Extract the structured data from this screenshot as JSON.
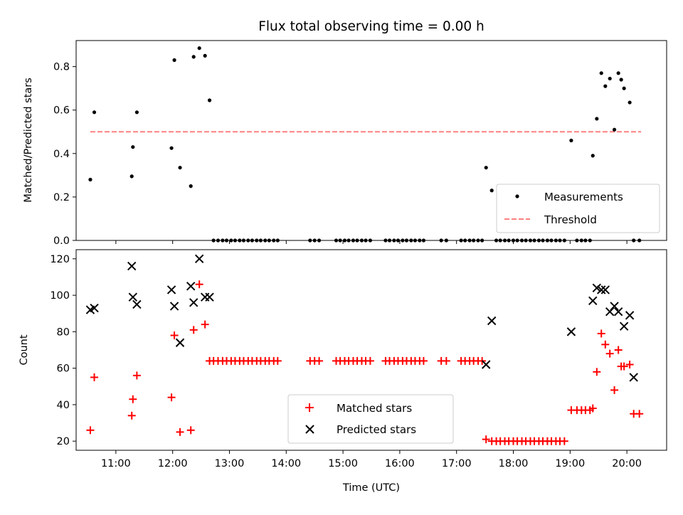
{
  "chart_data": [
    {
      "type": "scatter",
      "title": "Flux total observing time = 0.00 h",
      "ylabel": "Matched/Predicted stars",
      "xlim": [
        10.3,
        20.7
      ],
      "ylim": [
        0,
        0.92
      ],
      "yticks": [
        0.0,
        0.2,
        0.4,
        0.6,
        0.8
      ],
      "ytick_labels": [
        "0.0",
        "0.2",
        "0.4",
        "0.6",
        "0.8"
      ],
      "legend_loc": "lower-right",
      "legend": [
        "Measurements",
        "Threshold"
      ],
      "threshold": {
        "name": "Threshold",
        "y": 0.5,
        "x": [
          10.55,
          20.25
        ],
        "color": "#ff8080",
        "style": "dashed"
      },
      "series": [
        {
          "name": "Measurements",
          "marker": "dot",
          "color": "#000000",
          "x": [
            10.55,
            10.62,
            11.28,
            11.3,
            11.37,
            11.98,
            12.03,
            12.13,
            12.32,
            12.37,
            12.47,
            12.57,
            12.65,
            12.72,
            12.8,
            12.88,
            12.95,
            13.03,
            13.1,
            13.18,
            13.25,
            13.33,
            13.4,
            13.48,
            13.55,
            13.63,
            13.7,
            13.78,
            13.85,
            14.42,
            14.5,
            14.58,
            14.88,
            14.95,
            15.03,
            15.1,
            15.18,
            15.25,
            15.33,
            15.4,
            15.48,
            15.75,
            15.82,
            15.9,
            15.97,
            16.05,
            16.12,
            16.2,
            16.27,
            16.35,
            16.42,
            16.73,
            16.82,
            17.08,
            17.15,
            17.23,
            17.3,
            17.38,
            17.45,
            17.52,
            17.62,
            17.7,
            17.77,
            17.85,
            17.92,
            18.0,
            18.07,
            18.15,
            18.22,
            18.3,
            18.37,
            18.45,
            18.52,
            18.6,
            18.67,
            18.75,
            18.82,
            18.9,
            19.02,
            19.12,
            19.2,
            19.27,
            19.35,
            19.4,
            19.47,
            19.55,
            19.62,
            19.7,
            19.78,
            19.85,
            19.9,
            19.95,
            20.05,
            20.12,
            20.22
          ],
          "y": [
            0.28,
            0.59,
            0.295,
            0.43,
            0.59,
            0.425,
            0.83,
            0.335,
            0.25,
            0.845,
            0.885,
            0.85,
            0.645,
            0,
            0,
            0,
            0,
            0,
            0,
            0,
            0,
            0,
            0,
            0,
            0,
            0,
            0,
            0,
            0,
            0,
            0,
            0,
            0,
            0,
            0,
            0,
            0,
            0,
            0,
            0,
            0,
            0,
            0,
            0,
            0,
            0,
            0,
            0,
            0,
            0,
            0,
            0,
            0,
            0,
            0,
            0,
            0,
            0,
            0,
            0.335,
            0.23,
            0,
            0,
            0,
            0,
            0,
            0,
            0,
            0,
            0,
            0,
            0,
            0,
            0,
            0,
            0,
            0,
            0,
            0.46,
            0,
            0,
            0,
            0,
            0.39,
            0.56,
            0.77,
            0.71,
            0.745,
            0.51,
            0.77,
            0.74,
            0.7,
            0.635,
            0,
            0
          ]
        }
      ]
    },
    {
      "type": "scatter",
      "xlabel": "Time (UTC)",
      "ylabel": "Count",
      "xlim": [
        10.3,
        20.7
      ],
      "ylim": [
        15,
        125
      ],
      "yticks": [
        20,
        40,
        60,
        80,
        100,
        120
      ],
      "ytick_labels": [
        "20",
        "40",
        "60",
        "80",
        "100",
        "120"
      ],
      "xticks": [
        11,
        12,
        13,
        14,
        15,
        16,
        17,
        18,
        19,
        20
      ],
      "xtick_labels": [
        "11:00",
        "12:00",
        "13:00",
        "14:00",
        "15:00",
        "16:00",
        "17:00",
        "18:00",
        "19:00",
        "20:00"
      ],
      "legend_loc": "lower-center",
      "legend": [
        "Matched stars",
        "Predicted stars"
      ],
      "series": [
        {
          "name": "Matched stars",
          "marker": "plus",
          "color": "#ff0000",
          "x": [
            10.55,
            10.62,
            11.28,
            11.3,
            11.37,
            11.98,
            12.03,
            12.13,
            12.32,
            12.37,
            12.47,
            12.57,
            12.65,
            12.72,
            12.8,
            12.88,
            12.95,
            13.03,
            13.1,
            13.18,
            13.25,
            13.33,
            13.4,
            13.48,
            13.55,
            13.63,
            13.7,
            13.78,
            13.85,
            14.42,
            14.5,
            14.58,
            14.88,
            14.95,
            15.03,
            15.1,
            15.18,
            15.25,
            15.33,
            15.4,
            15.48,
            15.75,
            15.82,
            15.9,
            15.97,
            16.05,
            16.12,
            16.2,
            16.27,
            16.35,
            16.42,
            16.73,
            16.82,
            17.08,
            17.15,
            17.23,
            17.3,
            17.38,
            17.45,
            17.52,
            17.62,
            17.7,
            17.77,
            17.85,
            17.92,
            18.0,
            18.07,
            18.15,
            18.22,
            18.3,
            18.37,
            18.45,
            18.52,
            18.6,
            18.67,
            18.75,
            18.82,
            18.9,
            19.02,
            19.12,
            19.2,
            19.27,
            19.35,
            19.4,
            19.47,
            19.55,
            19.62,
            19.7,
            19.78,
            19.85,
            19.9,
            19.95,
            20.05,
            20.12,
            20.22
          ],
          "y": [
            26,
            55,
            34,
            43,
            56,
            44,
            78,
            25,
            26,
            81,
            106,
            84,
            64,
            64,
            64,
            64,
            64,
            64,
            64,
            64,
            64,
            64,
            64,
            64,
            64,
            64,
            64,
            64,
            64,
            64,
            64,
            64,
            64,
            64,
            64,
            64,
            64,
            64,
            64,
            64,
            64,
            64,
            64,
            64,
            64,
            64,
            64,
            64,
            64,
            64,
            64,
            64,
            64,
            64,
            64,
            64,
            64,
            64,
            64,
            21,
            20,
            20,
            20,
            20,
            20,
            20,
            20,
            20,
            20,
            20,
            20,
            20,
            20,
            20,
            20,
            20,
            20,
            20,
            37,
            37,
            37,
            37,
            37,
            38,
            58,
            79,
            73,
            68,
            48,
            70,
            61,
            61,
            62,
            35,
            35
          ]
        },
        {
          "name": "Predicted stars",
          "marker": "x",
          "color": "#000000",
          "x": [
            10.55,
            10.62,
            11.28,
            11.3,
            11.37,
            11.98,
            12.03,
            12.13,
            12.32,
            12.37,
            12.47,
            12.57,
            12.65,
            17.52,
            17.62,
            19.02,
            19.4,
            19.47,
            19.55,
            19.62,
            19.7,
            19.78,
            19.85,
            19.95,
            20.05,
            20.12
          ],
          "y": [
            92,
            93,
            116,
            99,
            95,
            103,
            94,
            74,
            105,
            96,
            120,
            99,
            99,
            62,
            86,
            80,
            97,
            104,
            103,
            103,
            91,
            94,
            91,
            83,
            89,
            55
          ]
        }
      ]
    }
  ]
}
